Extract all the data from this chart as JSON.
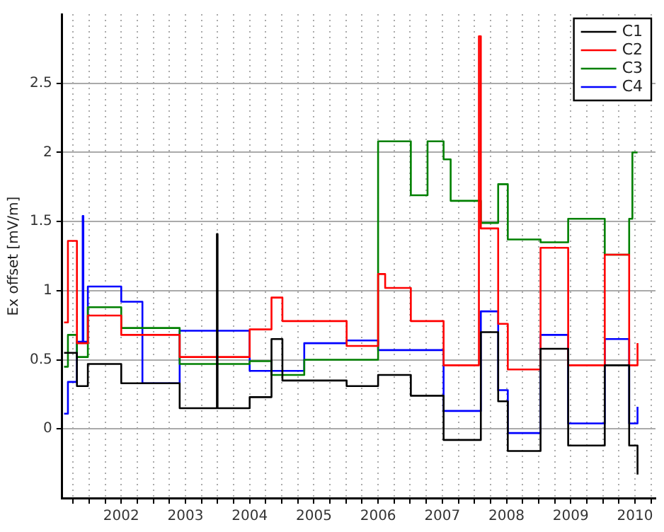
{
  "chart_data": {
    "type": "step",
    "ylabel": "Ex offset [mV/m]",
    "xlim": [
      2001.08,
      2010.32
    ],
    "ylim": [
      -0.5,
      3
    ],
    "xticks": [
      {
        "value": 2001.25,
        "label": null
      },
      {
        "value": 2001.5,
        "label": null
      },
      {
        "value": 2001.75,
        "label": null
      },
      2002,
      {
        "value": 2002.25,
        "label": null
      },
      {
        "value": 2002.5,
        "label": null
      },
      {
        "value": 2002.75,
        "label": null
      },
      2003,
      {
        "value": 2003.25,
        "label": null
      },
      {
        "value": 2003.5,
        "label": null
      },
      {
        "value": 2003.75,
        "label": null
      },
      2004,
      {
        "value": 2004.25,
        "label": null
      },
      {
        "value": 2004.5,
        "label": null
      },
      {
        "value": 2004.75,
        "label": null
      },
      2005,
      {
        "value": 2005.25,
        "label": null
      },
      {
        "value": 2005.5,
        "label": null
      },
      {
        "value": 2005.75,
        "label": null
      },
      2006,
      {
        "value": 2006.25,
        "label": null
      },
      {
        "value": 2006.5,
        "label": null
      },
      {
        "value": 2006.75,
        "label": null
      },
      2007,
      {
        "value": 2007.25,
        "label": null
      },
      {
        "value": 2007.5,
        "label": null
      },
      {
        "value": 2007.75,
        "label": null
      },
      2008,
      {
        "value": 2008.25,
        "label": null
      },
      {
        "value": 2008.5,
        "label": null
      },
      {
        "value": 2008.75,
        "label": null
      },
      2009,
      {
        "value": 2009.25,
        "label": null
      },
      {
        "value": 2009.5,
        "label": null
      },
      {
        "value": 2009.75,
        "label": null
      },
      2010,
      {
        "value": 2010.25,
        "label": null
      }
    ],
    "yticks": [
      0,
      0.5,
      1,
      1.5,
      2,
      2.5
    ],
    "grid": true,
    "legend": "top right",
    "series": [
      {
        "name": "C1",
        "color": "#000000",
        "x": [
          2001.11,
          2001.31,
          2001.48,
          2002.0,
          2002.91,
          2003.49,
          2003.5,
          2004.0,
          2004.34,
          2004.51,
          2005.51,
          2006.0,
          2006.51,
          2007.02,
          2007.6,
          2007.87,
          2008.02,
          2008.53,
          2008.96,
          2009.53,
          2009.91,
          2010.04
        ],
        "values": [
          0.55,
          0.31,
          0.47,
          0.33,
          0.15,
          1.41,
          0.15,
          0.23,
          0.65,
          0.35,
          0.31,
          0.39,
          0.24,
          -0.08,
          0.7,
          0.2,
          -0.16,
          0.58,
          -0.12,
          0.46,
          -0.12,
          -0.33
        ]
      },
      {
        "name": "C2",
        "color": "#ff0000",
        "x": [
          2001.11,
          2001.17,
          2001.31,
          2001.48,
          2002.0,
          2002.91,
          2004.0,
          2004.34,
          2004.51,
          2005.51,
          2006.0,
          2006.11,
          2006.51,
          2007.02,
          2007.57,
          2007.6,
          2007.87,
          2008.02,
          2008.53,
          2008.96,
          2009.53,
          2009.91,
          2010.04
        ],
        "values": [
          0.77,
          1.36,
          0.62,
          0.82,
          0.68,
          0.52,
          0.72,
          0.95,
          0.78,
          0.6,
          1.12,
          1.02,
          0.78,
          0.46,
          2.84,
          1.45,
          0.76,
          0.43,
          1.31,
          0.46,
          1.26,
          0.46,
          0.62
        ]
      },
      {
        "name": "C3",
        "color": "#008000",
        "x": [
          2001.11,
          2001.17,
          2001.31,
          2001.48,
          2002.0,
          2002.91,
          2004.0,
          2004.34,
          2004.85,
          2006.0,
          2006.51,
          2006.77,
          2007.02,
          2007.13,
          2007.6,
          2007.87,
          2008.02,
          2008.53,
          2008.96,
          2009.53,
          2009.91,
          2009.96,
          2010.04
        ],
        "values": [
          0.45,
          0.68,
          0.52,
          0.88,
          0.73,
          0.47,
          0.49,
          0.39,
          0.5,
          2.08,
          1.69,
          2.08,
          1.95,
          1.65,
          1.49,
          1.77,
          1.37,
          1.35,
          1.52,
          1.26,
          1.52,
          2.0,
          2.0
        ]
      },
      {
        "name": "C4",
        "color": "#0000ff",
        "x": [
          2001.11,
          2001.17,
          2001.31,
          2001.4,
          2001.41,
          2001.48,
          2002.0,
          2002.33,
          2002.91,
          2004.0,
          2004.85,
          2005.51,
          2006.0,
          2007.02,
          2007.6,
          2007.87,
          2008.02,
          2008.53,
          2008.96,
          2009.53,
          2009.91,
          2010.04
        ],
        "values": [
          0.11,
          0.34,
          0.63,
          1.54,
          0.63,
          1.03,
          0.92,
          0.33,
          0.71,
          0.42,
          0.62,
          0.64,
          0.57,
          0.13,
          0.85,
          0.28,
          -0.03,
          0.68,
          0.04,
          0.65,
          0.04,
          0.16
        ]
      }
    ]
  }
}
